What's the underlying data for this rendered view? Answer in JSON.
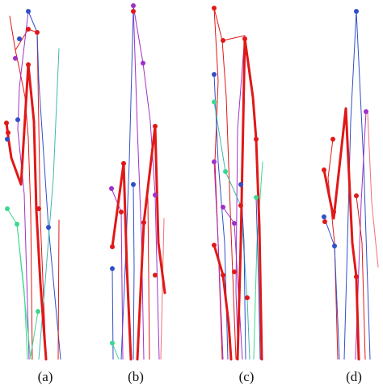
{
  "figure": {
    "panel_labels": [
      "(a)",
      "(b)",
      "(c)",
      "(d)"
    ],
    "colors": {
      "red": "#e01818",
      "blue": "#2f50c8",
      "purple": "#a030c8",
      "green": "#3cd890",
      "cyan": "#3fb8a8",
      "light_red": "#f07070"
    }
  }
}
